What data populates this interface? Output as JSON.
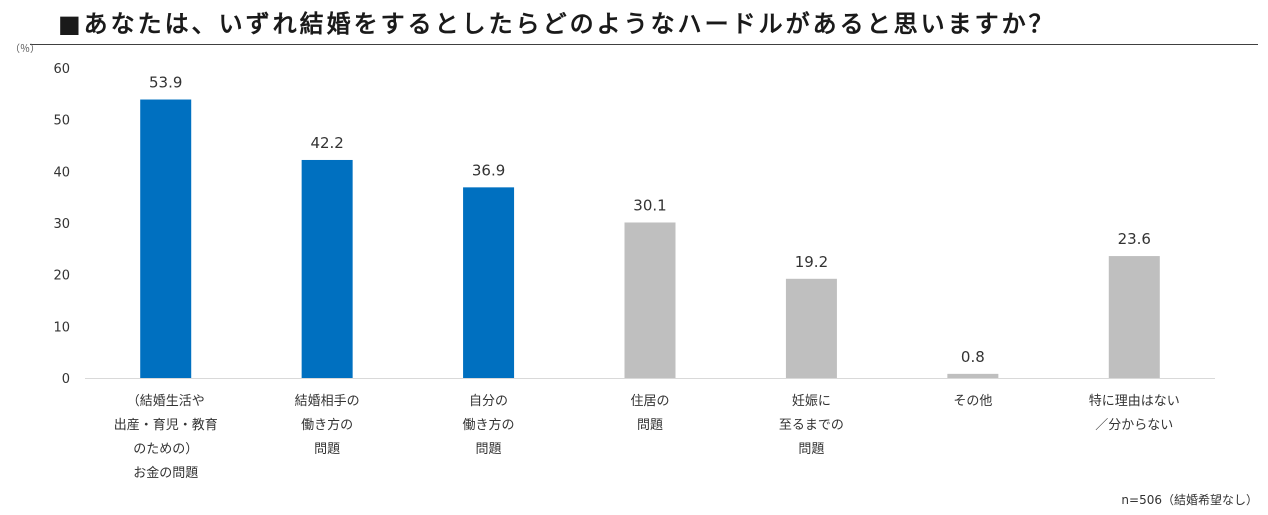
{
  "title": "■あなたは、いずれ結婚をするとしたらどのようなハードルがあると思いますか？",
  "unit_label": "（％）",
  "note": "n=506（結婚希望なし）",
  "colors": {
    "highlight": "#0070c0",
    "other": "#bfbfbf",
    "axis": "#d9d9d9",
    "text": "#333333"
  },
  "chart_data": {
    "type": "bar",
    "title": "■あなたは、いずれ結婚をするとしたらどのようなハードルがあると思いますか？",
    "ylabel": "（％）",
    "ylim": [
      0,
      60
    ],
    "yticks": [
      0,
      10,
      20,
      30,
      40,
      50,
      60
    ],
    "grid": false,
    "categories": [
      [
        "（結婚生活や",
        "出産・育児・教育",
        "のための）",
        "お金の問題"
      ],
      [
        "結婚相手の",
        "働き方の",
        "問題"
      ],
      [
        "自分の",
        "働き方の",
        "問題"
      ],
      [
        "住居の",
        "問題"
      ],
      [
        "妊娠に",
        "至るまでの",
        "問題"
      ],
      [
        "その他"
      ],
      [
        "特に理由はない",
        "／分からない"
      ]
    ],
    "values": [
      53.9,
      42.2,
      36.9,
      30.1,
      19.2,
      0.8,
      23.6
    ],
    "value_labels": [
      "53.9",
      "42.2",
      "36.9",
      "30.1",
      "19.2",
      "0.8",
      "23.6"
    ],
    "bar_colors": [
      "#0070c0",
      "#0070c0",
      "#0070c0",
      "#bfbfbf",
      "#bfbfbf",
      "#bfbfbf",
      "#bfbfbf"
    ]
  }
}
